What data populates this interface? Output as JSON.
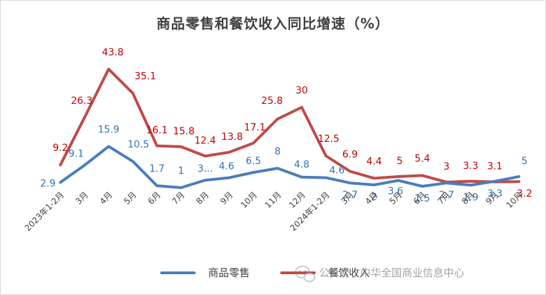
{
  "colors": {
    "retail": "#4A7EBB",
    "catering": "#BE4B48",
    "retail_label": "#2E74B5",
    "catering_label": "#C00000"
  },
  "watermark": {
    "text": "公众号 · 中华全国商业信息中心",
    "icon": "wechat-icon"
  },
  "chart_data": {
    "type": "line",
    "title": "商品零售和餐饮收入同比增速（%）",
    "xlabel": "",
    "ylabel": "",
    "grid": false,
    "legend": "bottom",
    "categories": [
      "2023年1-2月",
      "3月",
      "4月",
      "5月",
      "6月",
      "7月",
      "8月",
      "9月",
      "10月",
      "11月",
      "12月",
      "2024年1-2月",
      "3月",
      "4月",
      "5月",
      "6月",
      "7月",
      "8月",
      "9月",
      "10月"
    ],
    "series": [
      {
        "name": "商品零售",
        "values": [
          2.9,
          9.1,
          15.9,
          10.5,
          1.7,
          1,
          3.7,
          4.6,
          6.5,
          8,
          4.8,
          4.6,
          2.7,
          2,
          3.6,
          1.5,
          2.7,
          1.9,
          3.3,
          5
        ],
        "labels": [
          "2.9",
          "9.1",
          "15.9",
          "10.5",
          "1.7",
          "1",
          "3...",
          "4.6",
          "6.5",
          "8",
          "4.8",
          "4.6",
          "2.7",
          "2",
          "3.6",
          "1.5",
          "2.7",
          "1.9",
          "3.3",
          "5"
        ]
      },
      {
        "name": "餐饮收入",
        "values": [
          9.2,
          26.3,
          43.8,
          35.1,
          16.1,
          15.8,
          12.4,
          13.8,
          17.1,
          25.8,
          30,
          12.5,
          6.9,
          4.4,
          5,
          5.4,
          3,
          3.3,
          3.1,
          3.2
        ],
        "labels": [
          "9.2",
          "26.3",
          "43.8",
          "35.1",
          "16.1",
          "15.8",
          "12.4",
          "13.8",
          "17.1",
          "25.8",
          "30",
          "12.5",
          "6.9",
          "4.4",
          "5",
          "5.4",
          "3",
          "3.3",
          "3.1",
          "3.2"
        ]
      }
    ]
  }
}
